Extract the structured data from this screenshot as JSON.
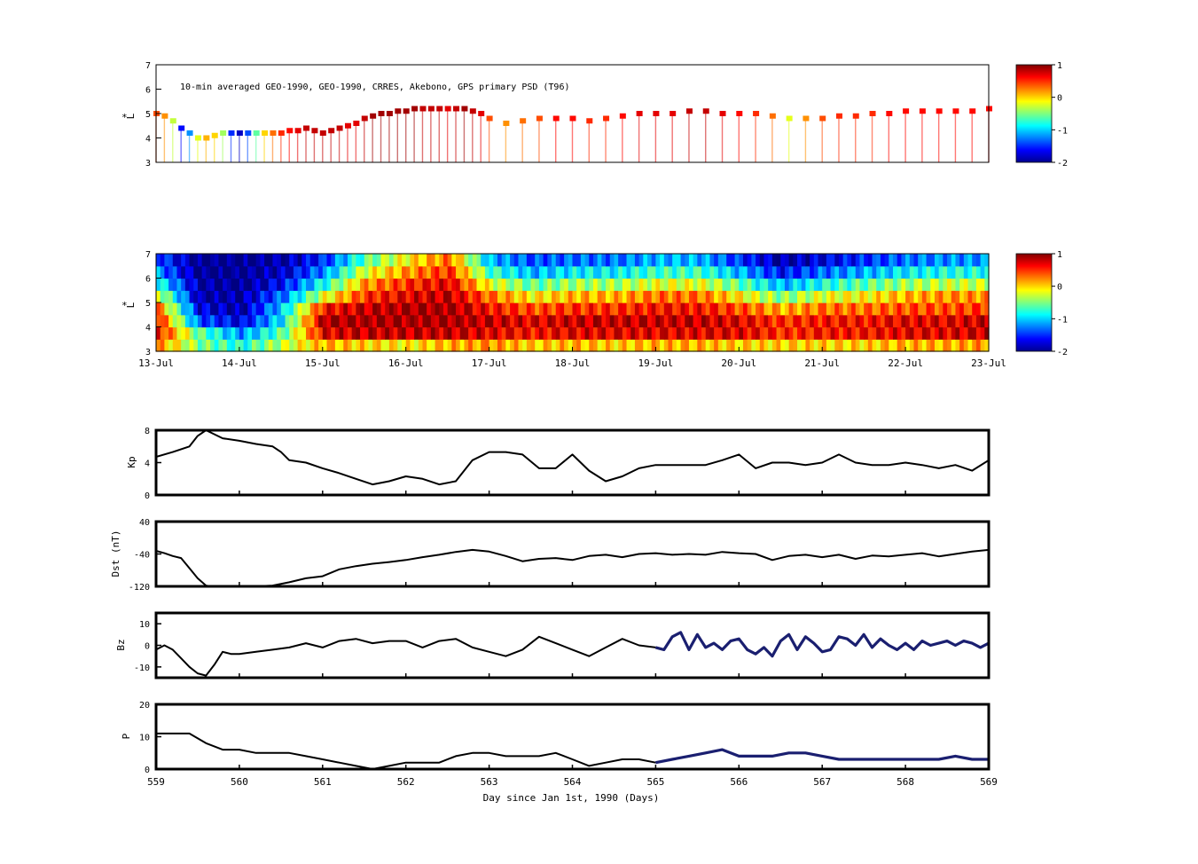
{
  "chart_data": [
    {
      "type": "heatmap",
      "title": "10-min averaged GEO-1990, GEO-1990, CRRES, Akebono, GPS  primary PSD (T96)",
      "ylabel_symbol": "*",
      "ylabel": "L",
      "y_ticks": [
        "3",
        "4",
        "5",
        "6",
        "7"
      ],
      "ylim": [
        3,
        7
      ],
      "x_range_days": [
        559,
        569
      ],
      "colorbar": {
        "ticks": [
          "1",
          "0",
          "-1",
          "-2"
        ],
        "range": [
          -2,
          1
        ],
        "colormap": "jet"
      },
      "trace": {
        "x": [
          559.0,
          559.1,
          559.2,
          559.3,
          559.4,
          559.5,
          559.6,
          559.7,
          559.8,
          559.9,
          560.0,
          560.1,
          560.2,
          560.3,
          560.4,
          560.5,
          560.6,
          560.7,
          560.8,
          560.9,
          561.0,
          561.1,
          561.2,
          561.3,
          561.4,
          561.5,
          561.6,
          561.7,
          561.8,
          561.9,
          562.0,
          562.1,
          562.2,
          562.3,
          562.4,
          562.5,
          562.6,
          562.7,
          562.8,
          562.9,
          563.0,
          563.2,
          563.4,
          563.6,
          563.8,
          564.0,
          564.2,
          564.4,
          564.6,
          564.8,
          565.0,
          565.2,
          565.4,
          565.6,
          565.8,
          566.0,
          566.2,
          566.4,
          566.6,
          566.8,
          567.0,
          567.2,
          567.4,
          567.6,
          567.8,
          568.0,
          568.2,
          568.4,
          568.6,
          568.8,
          569.0
        ],
        "y": [
          5.0,
          4.9,
          4.7,
          4.4,
          4.2,
          4.0,
          4.0,
          4.1,
          4.2,
          4.2,
          4.2,
          4.2,
          4.2,
          4.2,
          4.2,
          4.2,
          4.3,
          4.3,
          4.4,
          4.3,
          4.2,
          4.3,
          4.4,
          4.5,
          4.6,
          4.8,
          4.9,
          5.0,
          5.0,
          5.1,
          5.1,
          5.2,
          5.2,
          5.2,
          5.2,
          5.2,
          5.2,
          5.2,
          5.1,
          5.0,
          4.8,
          4.6,
          4.7,
          4.8,
          4.8,
          4.8,
          4.7,
          4.8,
          4.9,
          5.0,
          5.0,
          5.0,
          5.1,
          5.1,
          5.0,
          5.0,
          5.0,
          4.9,
          4.8,
          4.8,
          4.8,
          4.9,
          4.9,
          5.0,
          5.0,
          5.1,
          5.1,
          5.1,
          5.1,
          5.1,
          5.2
        ],
        "values": [
          0.4,
          0.2,
          -0.3,
          -1.6,
          -1.2,
          -0.2,
          0.1,
          0.0,
          -0.4,
          -1.5,
          -1.8,
          -1.4,
          -0.6,
          0.0,
          0.3,
          0.5,
          0.6,
          0.7,
          0.8,
          0.8,
          0.8,
          0.8,
          0.8,
          0.7,
          0.7,
          0.8,
          0.9,
          0.9,
          0.9,
          0.9,
          0.9,
          0.9,
          0.8,
          0.8,
          0.8,
          0.7,
          0.8,
          0.9,
          0.8,
          0.7,
          0.4,
          0.2,
          0.3,
          0.4,
          0.6,
          0.6,
          0.5,
          0.5,
          0.6,
          0.7,
          0.7,
          0.7,
          0.8,
          0.8,
          0.7,
          0.6,
          0.5,
          0.3,
          -0.2,
          0.2,
          0.4,
          0.5,
          0.5,
          0.5,
          0.6,
          0.6,
          0.6,
          0.6,
          0.6,
          0.6,
          0.6
        ]
      }
    },
    {
      "type": "heatmap",
      "ylabel_symbol": "*",
      "ylabel": "L",
      "y_ticks": [
        "3",
        "4",
        "5",
        "6",
        "7"
      ],
      "ylim": [
        3,
        7
      ],
      "x_range_days": [
        559,
        569
      ],
      "x_tick_labels": [
        "13-Jul",
        "14-Jul",
        "15-Jul",
        "16-Jul",
        "17-Jul",
        "18-Jul",
        "19-Jul",
        "20-Jul",
        "21-Jul",
        "22-Jul",
        "23-Jul"
      ],
      "colorbar": {
        "ticks": [
          "1",
          "0",
          "-1",
          "-2"
        ],
        "range": [
          -2,
          1
        ],
        "colormap": "jet"
      },
      "rows_L": [
        3.25,
        3.75,
        4.25,
        4.75,
        5.25,
        5.75,
        6.25,
        6.75
      ],
      "cols_day": [
        559.0,
        559.5,
        560.0,
        560.5,
        561.0,
        561.5,
        562.0,
        562.5,
        563.0,
        563.5,
        564.0,
        564.5,
        565.0,
        565.5,
        566.0,
        566.5,
        567.0,
        567.5,
        568.0,
        568.5,
        569.0
      ],
      "matrix": [
        [
          0.2,
          -0.5,
          -0.8,
          -0.3,
          0.1,
          0.0,
          -0.1,
          0.1,
          0.2,
          0.0,
          0.1,
          0.0,
          0.1,
          0.1,
          0.0,
          0.0,
          0.0,
          0.0,
          0.1,
          0.1,
          0.2
        ],
        [
          0.6,
          -0.6,
          -1.2,
          -0.6,
          0.7,
          0.8,
          0.8,
          0.8,
          0.7,
          0.6,
          0.7,
          0.7,
          0.7,
          0.7,
          0.7,
          0.5,
          0.6,
          0.6,
          0.7,
          0.7,
          0.8
        ],
        [
          0.6,
          -1.4,
          -1.7,
          -0.9,
          0.9,
          0.9,
          0.9,
          0.9,
          0.8,
          0.7,
          0.8,
          0.8,
          0.8,
          0.8,
          0.7,
          0.5,
          0.6,
          0.6,
          0.7,
          0.7,
          0.8
        ],
        [
          0.3,
          -1.7,
          -1.9,
          -1.0,
          0.6,
          0.8,
          0.9,
          0.9,
          0.6,
          0.4,
          0.5,
          0.5,
          0.6,
          0.6,
          0.4,
          0.1,
          0.3,
          0.3,
          0.4,
          0.4,
          0.5
        ],
        [
          -0.2,
          -1.9,
          -1.9,
          -1.3,
          -0.2,
          0.5,
          0.7,
          0.8,
          0.3,
          -0.1,
          0.1,
          0.1,
          0.3,
          0.3,
          -0.1,
          -0.5,
          -0.2,
          -0.1,
          0.1,
          0.2,
          0.2
        ],
        [
          -0.8,
          -1.9,
          -2.0,
          -1.6,
          -0.8,
          0.2,
          0.5,
          0.7,
          -0.2,
          -0.6,
          -0.4,
          -0.4,
          -0.2,
          -0.2,
          -0.6,
          -1.1,
          -0.8,
          -0.6,
          -0.4,
          -0.3,
          -0.3
        ],
        [
          -1.2,
          -2.0,
          -2.0,
          -1.8,
          -1.2,
          -0.2,
          0.2,
          0.5,
          -0.7,
          -1.1,
          -0.9,
          -0.9,
          -0.7,
          -0.7,
          -1.1,
          -1.6,
          -1.3,
          -1.1,
          -0.9,
          -0.8,
          -0.8
        ],
        [
          -1.4,
          -2.0,
          -2.0,
          -1.9,
          -1.5,
          -0.6,
          -0.1,
          0.3,
          -1.1,
          -1.4,
          -1.3,
          -1.3,
          -1.1,
          -1.1,
          -1.5,
          -1.9,
          -1.7,
          -1.5,
          -1.3,
          -1.2,
          -1.2
        ]
      ]
    },
    {
      "type": "line",
      "ylabel": "Kp",
      "y_ticks": [
        "0",
        "4",
        "8"
      ],
      "ylim": [
        0,
        8
      ],
      "x_range_days": [
        559,
        569
      ],
      "series": [
        {
          "color": "#000000",
          "x": [
            559.0,
            559.2,
            559.4,
            559.5,
            559.6,
            559.8,
            560.0,
            560.2,
            560.4,
            560.5,
            560.6,
            560.8,
            561.0,
            561.2,
            561.4,
            561.6,
            561.8,
            562.0,
            562.2,
            562.4,
            562.6,
            562.8,
            563.0,
            563.2,
            563.4,
            563.6,
            563.8,
            564.0,
            564.2,
            564.4,
            564.6,
            564.8,
            565.0,
            565.2,
            565.4,
            565.6,
            565.8,
            566.0,
            566.2,
            566.4,
            566.6,
            566.8,
            567.0,
            567.2,
            567.4,
            567.6,
            567.8,
            568.0,
            568.2,
            568.4,
            568.6,
            568.8,
            569.0
          ],
          "y": [
            4.7,
            5.3,
            6.0,
            7.3,
            8.0,
            7.0,
            6.7,
            6.3,
            6.0,
            5.3,
            4.3,
            4.0,
            3.3,
            2.7,
            2.0,
            1.3,
            1.7,
            2.3,
            2.0,
            1.3,
            1.7,
            4.3,
            5.3,
            5.3,
            5.0,
            3.3,
            3.3,
            5.0,
            3.0,
            1.7,
            2.3,
            3.3,
            3.7,
            3.7,
            3.7,
            3.7,
            4.3,
            5.0,
            3.3,
            4.0,
            4.0,
            3.7,
            4.0,
            5.0,
            4.0,
            3.7,
            3.7,
            4.0,
            3.7,
            3.3,
            3.7,
            3.0,
            4.3
          ]
        }
      ]
    },
    {
      "type": "line",
      "ylabel": "Dst (nT)",
      "y_ticks": [
        "-120",
        "-40",
        "40"
      ],
      "ylim": [
        -120,
        40
      ],
      "x_range_days": [
        559,
        569
      ],
      "series": [
        {
          "color": "#000000",
          "x": [
            559.0,
            559.1,
            559.2,
            559.3,
            559.4,
            559.5,
            559.6,
            559.8,
            560.0,
            560.2,
            560.4,
            560.6,
            560.8,
            561.0,
            561.2,
            561.4,
            561.6,
            561.8,
            562.0,
            562.2,
            562.4,
            562.6,
            562.8,
            563.0,
            563.2,
            563.4,
            563.6,
            563.8,
            564.0,
            564.2,
            564.4,
            564.6,
            564.8,
            565.0,
            565.2,
            565.4,
            565.6,
            565.8,
            566.0,
            566.2,
            566.4,
            566.6,
            566.8,
            567.0,
            567.2,
            567.4,
            567.6,
            567.8,
            568.0,
            568.2,
            568.4,
            568.6,
            568.8,
            569.0
          ],
          "y": [
            -32,
            -38,
            -45,
            -50,
            -75,
            -100,
            -118,
            -125,
            -122,
            -120,
            -118,
            -110,
            -100,
            -95,
            -78,
            -70,
            -64,
            -60,
            -55,
            -48,
            -42,
            -35,
            -30,
            -34,
            -45,
            -58,
            -52,
            -50,
            -55,
            -45,
            -42,
            -48,
            -40,
            -38,
            -42,
            -40,
            -42,
            -35,
            -38,
            -40,
            -55,
            -45,
            -42,
            -48,
            -42,
            -52,
            -44,
            -46,
            -42,
            -38,
            -46,
            -40,
            -34,
            -30
          ]
        }
      ]
    },
    {
      "type": "line",
      "ylabel": "Bz",
      "y_ticks": [
        "-10",
        "0",
        "10"
      ],
      "ylim": [
        -15,
        15
      ],
      "x_range_days": [
        559,
        569
      ],
      "series": [
        {
          "color": "#000000",
          "x": [
            559.0,
            559.1,
            559.2,
            559.3,
            559.4,
            559.5,
            559.6,
            559.7,
            559.8,
            559.9,
            560.0,
            560.2,
            560.4,
            560.6,
            560.8,
            561.0,
            561.2,
            561.4,
            561.6,
            561.8,
            562.0,
            562.2,
            562.4,
            562.6,
            562.8,
            563.0,
            563.2,
            563.4,
            563.6,
            563.8,
            564.0,
            564.2,
            564.4,
            564.6,
            564.8,
            565.0
          ],
          "y": [
            -2,
            0,
            -2,
            -6,
            -10,
            -13,
            -14,
            -9,
            -3,
            -4,
            -4,
            -3,
            -2,
            -1,
            1,
            -1,
            2,
            3,
            1,
            2,
            2,
            -1,
            2,
            3,
            -1,
            -3,
            -5,
            -2,
            4,
            1,
            -2,
            -5,
            -1,
            3,
            0,
            -1
          ]
        },
        {
          "color": "#1a1f70",
          "x": [
            565.0,
            565.1,
            565.2,
            565.3,
            565.4,
            565.5,
            565.6,
            565.7,
            565.8,
            565.9,
            566.0,
            566.1,
            566.2,
            566.3,
            566.4,
            566.5,
            566.6,
            566.7,
            566.8,
            566.9,
            567.0,
            567.1,
            567.2,
            567.3,
            567.4,
            567.5,
            567.6,
            567.7,
            567.8,
            567.9,
            568.0,
            568.1,
            568.2,
            568.3,
            568.4,
            568.5,
            568.6,
            568.7,
            568.8,
            568.9,
            569.0
          ],
          "y": [
            -1,
            -2,
            4,
            6,
            -2,
            5,
            -1,
            1,
            -2,
            2,
            3,
            -2,
            -4,
            -1,
            -5,
            2,
            5,
            -2,
            4,
            1,
            -3,
            -2,
            4,
            3,
            0,
            5,
            -1,
            3,
            0,
            -2,
            1,
            -2,
            2,
            0,
            1,
            2,
            0,
            2,
            1,
            -1,
            1
          ]
        }
      ]
    },
    {
      "type": "line",
      "ylabel": "P",
      "y_ticks": [
        "0",
        "10",
        "20"
      ],
      "ylim": [
        0,
        20
      ],
      "xlabel": "Day since Jan 1st, 1990 (Days)",
      "x_tick_labels": [
        "559",
        "560",
        "561",
        "562",
        "563",
        "564",
        "565",
        "566",
        "567",
        "568",
        "569"
      ],
      "x_range_days": [
        559,
        569
      ],
      "series": [
        {
          "color": "#000000",
          "x": [
            559.0,
            559.2,
            559.4,
            559.6,
            559.8,
            560.0,
            560.2,
            560.4,
            560.6,
            560.8,
            561.0,
            561.2,
            561.4,
            561.6,
            561.8,
            562.0,
            562.2,
            562.4,
            562.6,
            562.8,
            563.0,
            563.2,
            563.4,
            563.6,
            563.8,
            564.0,
            564.2,
            564.4,
            564.6,
            564.8,
            565.0
          ],
          "y": [
            11,
            11,
            11,
            8,
            6,
            6,
            5,
            5,
            5,
            4,
            3,
            2,
            1,
            0,
            1,
            2,
            2,
            2,
            4,
            5,
            5,
            4,
            4,
            4,
            5,
            3,
            1,
            2,
            3,
            3,
            2
          ]
        },
        {
          "color": "#1a1f70",
          "x": [
            565.0,
            565.2,
            565.4,
            565.6,
            565.8,
            566.0,
            566.2,
            566.4,
            566.6,
            566.8,
            567.0,
            567.2,
            567.4,
            567.6,
            567.8,
            568.0,
            568.2,
            568.4,
            568.6,
            568.8,
            569.0
          ],
          "y": [
            2,
            3,
            4,
            5,
            6,
            4,
            4,
            4,
            5,
            5,
            4,
            3,
            3,
            3,
            3,
            3,
            3,
            3,
            4,
            3,
            3
          ]
        }
      ]
    }
  ]
}
